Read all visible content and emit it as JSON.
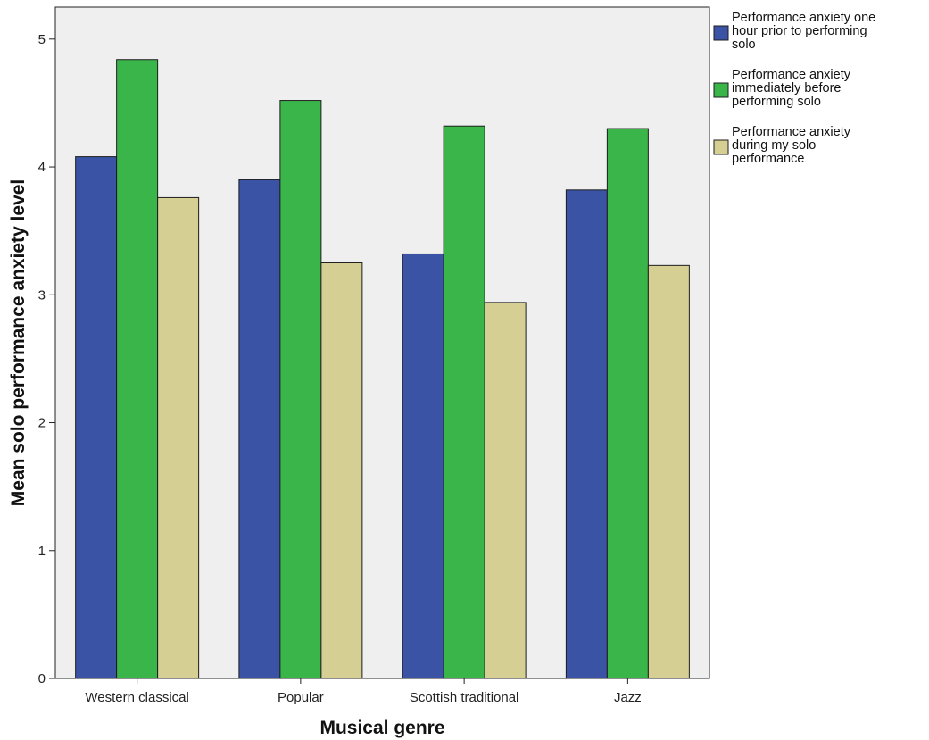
{
  "chart_data": {
    "type": "bar",
    "title": "",
    "xlabel": "Musical genre",
    "ylabel": "Mean solo performance anxiety level",
    "categories": [
      "Western classical",
      "Popular",
      "Scottish traditional",
      "Jazz"
    ],
    "series": [
      {
        "name": "Performance anxiety one hour prior to performing solo",
        "name_lines": [
          "Performance anxiety one",
          "hour prior to performing",
          "solo"
        ],
        "color": "#3a53a4",
        "values": [
          4.08,
          3.9,
          3.32,
          3.82
        ]
      },
      {
        "name": "Performance anxiety immediately before performing solo",
        "name_lines": [
          "Performance anxiety",
          "immediately before",
          "performing solo"
        ],
        "color": "#3ab54a",
        "values": [
          4.84,
          4.52,
          4.32,
          4.3
        ]
      },
      {
        "name": "Performance anxiety during my solo performance",
        "name_lines": [
          "Performance anxiety",
          "during my solo",
          "performance"
        ],
        "color": "#d5cf94",
        "values": [
          3.76,
          3.25,
          2.94,
          3.23
        ]
      }
    ],
    "ylim": [
      0,
      5.25
    ],
    "yticks": [
      0,
      1,
      2,
      3,
      4,
      5
    ],
    "ytick_labels": [
      "0",
      "1",
      "2",
      "3",
      "4",
      "5"
    ],
    "grid": false,
    "legend_position": "right",
    "plot_background": "#efefef"
  }
}
